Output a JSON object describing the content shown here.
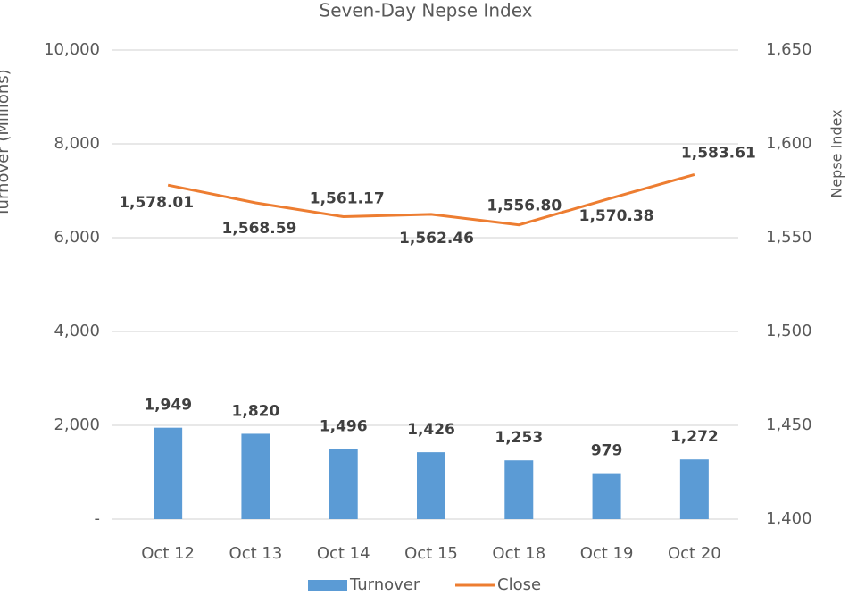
{
  "chart_data": {
    "type": "combo",
    "title": "Seven-Day Nepse Index",
    "y_label": "Turnover (Millions)",
    "y2_label": "Nepse Index",
    "categories": [
      "Oct 12",
      "Oct 13",
      "Oct 14",
      "Oct 15",
      "Oct 18",
      "Oct 19",
      "Oct 20"
    ],
    "series": [
      {
        "name": "Turnover",
        "type": "bar",
        "color": "#5b9bd5",
        "values": [
          1949,
          1820,
          1496,
          1426,
          1253,
          979,
          1272
        ],
        "value_labels": [
          "1,949",
          "1,820",
          "1,496",
          "1,426",
          "1,253",
          "979",
          "1,272"
        ]
      },
      {
        "name": "Close",
        "type": "line",
        "axis": "y2",
        "color": "#ed7d31",
        "values": [
          1578.01,
          1568.59,
          1561.17,
          1562.46,
          1556.8,
          1570.38,
          1583.61
        ],
        "value_labels": [
          "1,578.01",
          "1,568.59",
          "1,561.17",
          "1,562.46",
          "1,556.80",
          "1,570.38",
          "1,583.61"
        ]
      }
    ],
    "ylim": [
      0,
      10000
    ],
    "yticks": [
      {
        "value": 0,
        "label": "-"
      },
      {
        "value": 2000,
        "label": "2,000"
      },
      {
        "value": 4000,
        "label": "4,000"
      },
      {
        "value": 6000,
        "label": "6,000"
      },
      {
        "value": 8000,
        "label": "8,000"
      },
      {
        "value": 10000,
        "label": "10,000"
      }
    ],
    "y2lim": [
      1400,
      1650
    ],
    "y2ticks": [
      {
        "value": 1400,
        "label": "1,400"
      },
      {
        "value": 1450,
        "label": "1,450"
      },
      {
        "value": 1500,
        "label": "1,500"
      },
      {
        "value": 1550,
        "label": "1,550"
      },
      {
        "value": 1600,
        "label": "1,600"
      },
      {
        "value": 1650,
        "label": "1,650"
      }
    ],
    "grid": true,
    "legend": "bottom"
  }
}
